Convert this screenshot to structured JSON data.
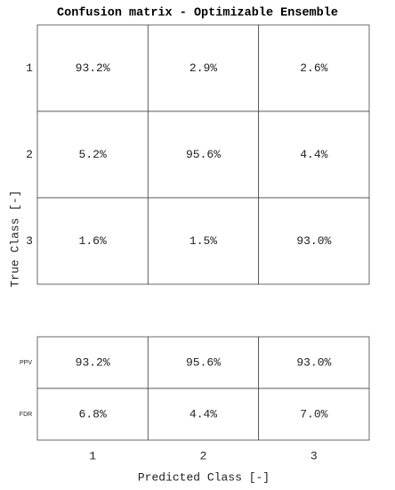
{
  "chart_data": {
    "type": "confusion_matrix",
    "title": "Confusion matrix  - Optimizable Ensemble",
    "x_label": "Predicted Class [-]",
    "y_label": "True Class [-]",
    "x_categories": [
      "1",
      "2",
      "3"
    ],
    "y_categories": [
      "1",
      "2",
      "3"
    ],
    "values": [
      [
        93.2,
        2.9,
        2.6
      ],
      [
        5.2,
        95.6,
        4.4
      ],
      [
        1.6,
        1.5,
        93.0
      ]
    ],
    "value_labels": [
      [
        "93.2%",
        "2.9%",
        "2.6%"
      ],
      [
        "5.2%",
        "95.6%",
        "4.4%"
      ],
      [
        "1.6%",
        "1.5%",
        "93.0%"
      ]
    ],
    "summary_rows": [
      {
        "name": "PPV",
        "values": [
          93.2,
          95.6,
          93.0
        ],
        "value_labels": [
          "93.2%",
          "95.6%",
          "93.0%"
        ]
      },
      {
        "name": "FDR",
        "values": [
          6.8,
          4.4,
          7.0
        ],
        "value_labels": [
          "6.8%",
          "4.4%",
          "7.0%"
        ]
      }
    ]
  }
}
